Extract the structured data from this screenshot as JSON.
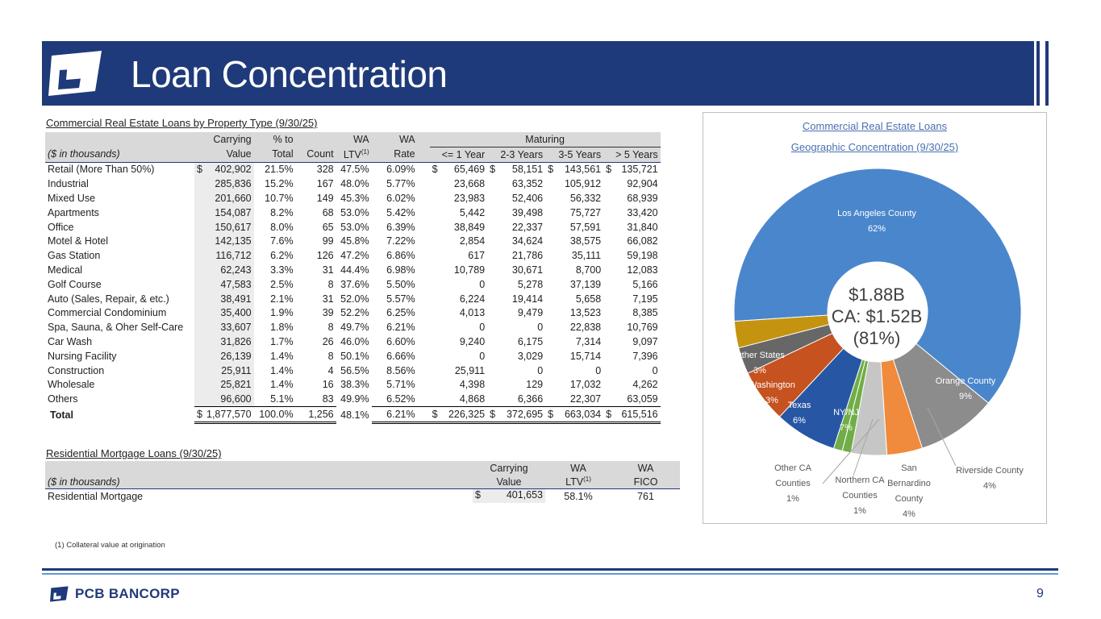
{
  "header": {
    "title": "Loan Concentration"
  },
  "cre": {
    "section_title": "Commercial Real Estate Loans by Property Type (9/30/25)",
    "h1": {
      "carrying": "Carrying",
      "pct": "% to",
      "wa": "WA",
      "wa_rate": "WA",
      "maturing": "Maturing"
    },
    "h2": {
      "label": "($ in thousands)",
      "carrying": "Value",
      "pct": "Total",
      "count": "Count",
      "ltv": "LTV",
      "ltv_sup": "(1)",
      "rate": "Rate",
      "m1": "<= 1 Year",
      "m2": "2-3 Years",
      "m3": "3-5 Years",
      "m4": "> 5 Years"
    },
    "rows": [
      [
        "Retail (More Than 50%)",
        "402,902",
        "21.5%",
        "328",
        "47.5%",
        "6.09%",
        "65,469",
        "58,151",
        "143,561",
        "135,721"
      ],
      [
        "Industrial",
        "285,836",
        "15.2%",
        "167",
        "48.0%",
        "5.77%",
        "23,668",
        "63,352",
        "105,912",
        "92,904"
      ],
      [
        "Mixed Use",
        "201,660",
        "10.7%",
        "149",
        "45.3%",
        "6.02%",
        "23,983",
        "52,406",
        "56,332",
        "68,939"
      ],
      [
        "Apartments",
        "154,087",
        "8.2%",
        "68",
        "53.0%",
        "5.42%",
        "5,442",
        "39,498",
        "75,727",
        "33,420"
      ],
      [
        "Office",
        "150,617",
        "8.0%",
        "65",
        "53.0%",
        "6.39%",
        "38,849",
        "22,337",
        "57,591",
        "31,840"
      ],
      [
        "Motel & Hotel",
        "142,135",
        "7.6%",
        "99",
        "45.8%",
        "7.22%",
        "2,854",
        "34,624",
        "38,575",
        "66,082"
      ],
      [
        "Gas Station",
        "116,712",
        "6.2%",
        "126",
        "47.2%",
        "6.86%",
        "617",
        "21,786",
        "35,111",
        "59,198"
      ],
      [
        "Medical",
        "62,243",
        "3.3%",
        "31",
        "44.4%",
        "6.98%",
        "10,789",
        "30,671",
        "8,700",
        "12,083"
      ],
      [
        "Golf Course",
        "47,583",
        "2.5%",
        "8",
        "37.6%",
        "5.50%",
        "0",
        "5,278",
        "37,139",
        "5,166"
      ],
      [
        "Auto (Sales, Repair, & etc.)",
        "38,491",
        "2.1%",
        "31",
        "52.0%",
        "5.57%",
        "6,224",
        "19,414",
        "5,658",
        "7,195"
      ],
      [
        "Commercial Condominium",
        "35,400",
        "1.9%",
        "39",
        "52.2%",
        "6.25%",
        "4,013",
        "9,479",
        "13,523",
        "8,385"
      ],
      [
        "Spa, Sauna, & Oher Self-Care",
        "33,607",
        "1.8%",
        "8",
        "49.7%",
        "6.21%",
        "0",
        "0",
        "22,838",
        "10,769"
      ],
      [
        "Car Wash",
        "31,826",
        "1.7%",
        "26",
        "46.0%",
        "6.60%",
        "9,240",
        "6,175",
        "7,314",
        "9,097"
      ],
      [
        "Nursing Facility",
        "26,139",
        "1.4%",
        "8",
        "50.1%",
        "6.66%",
        "0",
        "3,029",
        "15,714",
        "7,396"
      ],
      [
        "Construction",
        "25,911",
        "1.4%",
        "4",
        "56.5%",
        "8.56%",
        "25,911",
        "0",
        "0",
        "0"
      ],
      [
        "Wholesale",
        "25,821",
        "1.4%",
        "16",
        "38.3%",
        "5.71%",
        "4,398",
        "129",
        "17,032",
        "4,262"
      ],
      [
        "Others",
        "96,600",
        "5.1%",
        "83",
        "49.9%",
        "6.52%",
        "4,868",
        "6,366",
        "22,307",
        "63,059"
      ]
    ],
    "total": [
      "Total",
      "1,877,570",
      "100.0%",
      "1,256",
      "48.1%",
      "6.21%",
      "226,325",
      "372,695",
      "663,034",
      "615,516"
    ],
    "currency": "$"
  },
  "res": {
    "section_title": "Residential Mortgage Loans (9/30/25)",
    "h1": {
      "carrying": "Carrying",
      "wa": "WA",
      "wa2": "WA"
    },
    "h2": {
      "label": "($ in thousands)",
      "carrying": "Value",
      "ltv": "LTV",
      "ltv_sup": "(1)",
      "fico": "FICO"
    },
    "row": {
      "label": "Residential Mortgage",
      "currency": "$",
      "value": "401,653",
      "ltv": "58.1%",
      "fico": "761"
    }
  },
  "pie": {
    "title1": "Commercial Real Estate Loans",
    "title2": "Geographic Concentration (9/30/25)",
    "center": [
      "$1.88B",
      "CA: $1.52B",
      "(81%)"
    ],
    "labels": {
      "la": [
        "Los Angeles County",
        "62%"
      ],
      "orange": [
        "Orange County",
        "9%"
      ],
      "riverside": [
        "Riverside County",
        "4%"
      ],
      "sanb": [
        "San",
        "Bernardino",
        "County",
        "4%"
      ],
      "northern": [
        "Northern CA",
        "Counties",
        "1%"
      ],
      "otherca": [
        "Other CA",
        "Counties",
        "1%"
      ],
      "nyny": [
        "NY/NJ",
        "7%"
      ],
      "texas": [
        "Texas",
        "6%"
      ],
      "wash": [
        "Washington",
        "3%"
      ],
      "otherstates": [
        "Other States",
        "3%"
      ]
    }
  },
  "chart_data": {
    "type": "pie",
    "title": "Commercial Real Estate Loans Geographic Concentration (9/30/25)",
    "categories": [
      "Los Angeles County",
      "Orange County",
      "Riverside County",
      "San Bernardino County",
      "Northern CA Counties",
      "Other CA Counties",
      "NY/NJ",
      "Texas",
      "Washington",
      "Other States"
    ],
    "values": [
      62,
      9,
      4,
      4,
      1,
      1,
      7,
      6,
      3,
      3
    ],
    "colors": [
      "#4a86cc",
      "#8c8c8c",
      "#f08a3c",
      "#c6c6c6",
      "#70ad47",
      "#70ad47",
      "#2756a4",
      "#c5521f",
      "#676767",
      "#c49410"
    ]
  },
  "footnote": "(1)     Collateral value at origination",
  "footer": {
    "brand": "PCB BANCORP",
    "page": "9"
  }
}
